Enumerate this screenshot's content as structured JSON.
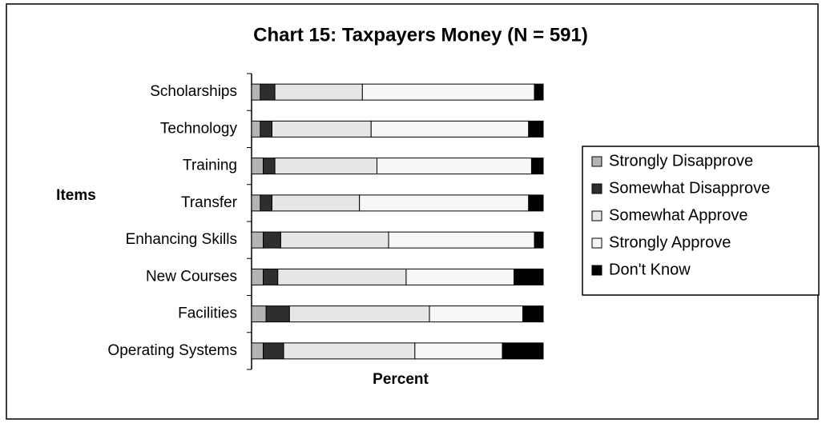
{
  "chart_data": {
    "type": "stacked_bar_horizontal",
    "title": "Chart 15: Taxpayers Money (N = 591)",
    "y_label": "Items",
    "x_label": "Percent",
    "categories": [
      "Scholarships",
      "Technology",
      "Training",
      "Transfer",
      "Enhancing Skills",
      "New Courses",
      "Facilities",
      "Operating Systems"
    ],
    "series": [
      {
        "name": "Strongly Disapprove",
        "color": "#b4b4b4",
        "values": [
          3,
          3,
          4,
          3,
          4,
          4,
          5,
          4
        ]
      },
      {
        "name": "Somewhat Disapprove",
        "color": "#2e2e2e",
        "values": [
          5,
          4,
          4,
          4,
          6,
          5,
          8,
          7
        ]
      },
      {
        "name": "Somewhat Approve",
        "color": "#e6e6e6",
        "values": [
          30,
          34,
          35,
          30,
          37,
          44,
          48,
          45
        ]
      },
      {
        "name": "Strongly Approve",
        "color": "#f7f7f7",
        "values": [
          59,
          54,
          53,
          58,
          50,
          37,
          32,
          30
        ]
      },
      {
        "name": "Don't Know",
        "color": "#000000",
        "values": [
          3,
          5,
          4,
          5,
          3,
          10,
          7,
          14
        ]
      }
    ],
    "xlim": [
      0,
      100
    ],
    "legend": "right"
  }
}
